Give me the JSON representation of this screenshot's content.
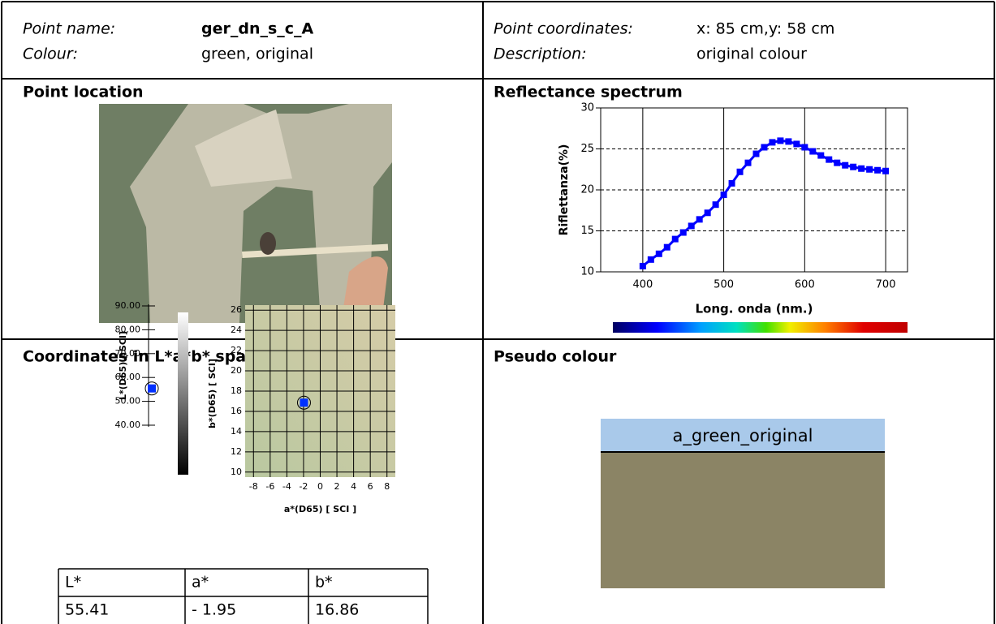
{
  "header": {
    "point_name_label": "Point name:",
    "point_name": "ger_dn_s_c_A",
    "colour_label": "Colour:",
    "colour": "green, original",
    "coords_label": "Point coordinates:",
    "coords": "x: 85 cm,y: 58 cm",
    "description_label": "Description:",
    "description": "original colour"
  },
  "location": {
    "title": "Point location"
  },
  "spectrum": {
    "title": "Reflectance spectrum",
    "chart": {
      "type": "line",
      "xlabel": "Long. onda (nm.)",
      "ylabel": "Riflettanza(%)",
      "color": "#0000ff",
      "x": [
        400,
        410,
        420,
        430,
        440,
        450,
        460,
        470,
        480,
        490,
        500,
        510,
        520,
        530,
        540,
        550,
        560,
        570,
        580,
        590,
        600,
        610,
        620,
        630,
        640,
        650,
        660,
        670,
        680,
        690,
        700
      ],
      "values": [
        10.7,
        11.5,
        12.2,
        13.0,
        14.0,
        14.8,
        15.6,
        16.4,
        17.2,
        18.2,
        19.4,
        20.8,
        22.2,
        23.3,
        24.4,
        25.2,
        25.8,
        26.0,
        25.9,
        25.6,
        25.2,
        24.7,
        24.2,
        23.7,
        23.3,
        23.0,
        22.8,
        22.6,
        22.5,
        22.4,
        22.3
      ],
      "xlim": [
        348,
        727
      ],
      "ylim": [
        10,
        30
      ],
      "xticks": [
        400,
        500,
        600,
        700
      ],
      "yticks": [
        10,
        15,
        20,
        25,
        30
      ],
      "grid": true
    }
  },
  "lab": {
    "title": "Coordinates in L*a*b* space",
    "l_chart": {
      "type": "scatter",
      "ylabel": "L*(D65) [ SCI]",
      "color": "#0030ff",
      "values": [
        55.41
      ],
      "ylim": [
        40,
        90
      ],
      "yticks": [
        {
          "value": 40,
          "label": "40.00"
        },
        {
          "value": 50,
          "label": "50.00"
        },
        {
          "value": 60,
          "label": "60.00"
        },
        {
          "value": 70,
          "label": "70.00"
        },
        {
          "value": 80,
          "label": "80.00"
        },
        {
          "value": 90,
          "label": "90.00"
        }
      ]
    },
    "b_scale_label": "b*(D65) [ SCI]",
    "ab_chart": {
      "type": "scatter",
      "xlabel": "a*(D65) [ SCI ]",
      "color": "#0030ff",
      "x": [
        -1.95
      ],
      "values": [
        16.86
      ],
      "xlim": [
        -9,
        9
      ],
      "ylim": [
        9.5,
        26.5
      ],
      "xticks": [
        -8,
        -6,
        -4,
        -2,
        0,
        2,
        4,
        6,
        8
      ],
      "yticks": [
        10,
        12,
        14,
        16,
        18,
        20,
        22,
        24,
        26
      ],
      "grid": true
    },
    "table": {
      "header": [
        "L*",
        "a*",
        "b*"
      ],
      "rows": [
        [
          "55.41",
          "- 1.95",
          "16.86"
        ]
      ]
    }
  },
  "pseudo": {
    "title": "Pseudo colour",
    "label": "a_green_original",
    "color": "#8b8465",
    "band_color": "#a9c9ea"
  }
}
